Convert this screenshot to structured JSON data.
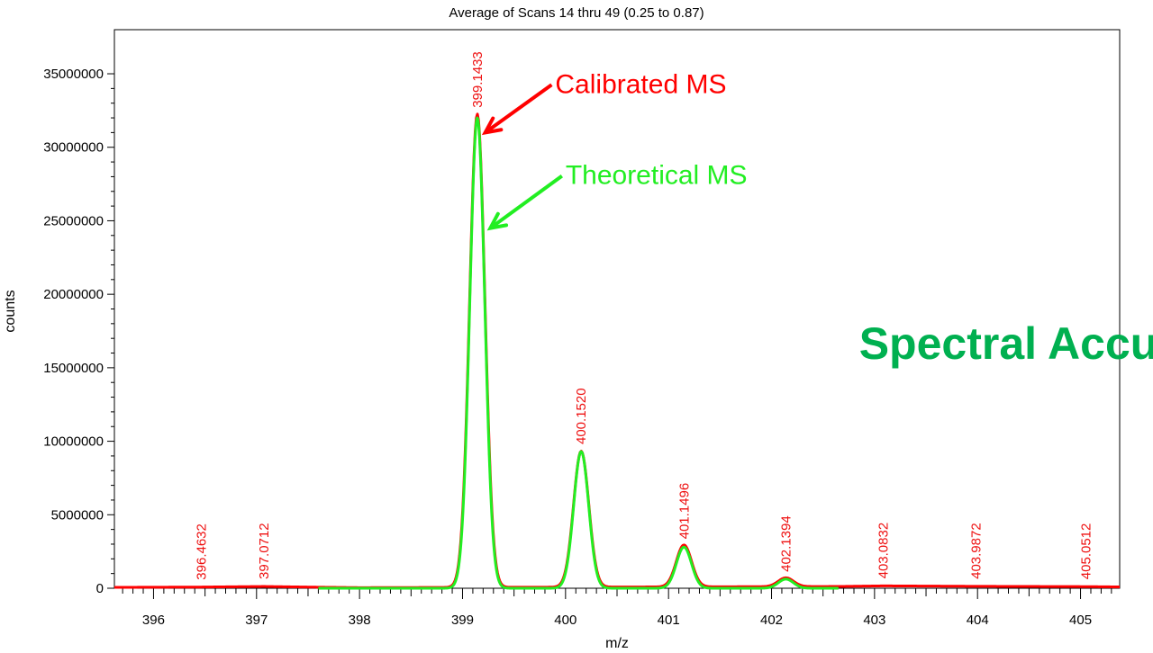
{
  "colors": {
    "calibrated": "#ff0000",
    "theoretical": "#22ee22",
    "peak_label": "#ee1111",
    "accent_text": "#00b050",
    "axis": "#000000"
  },
  "chart_data": {
    "type": "line",
    "title": "Average of Scans 14 thru 49 (0.25 to 0.87)",
    "xlabel": "m/z",
    "ylabel": "counts",
    "xlim": [
      395.62,
      405.38
    ],
    "ylim": [
      0,
      38000000
    ],
    "x_ticks": [
      396,
      397,
      398,
      399,
      400,
      401,
      402,
      403,
      404,
      405
    ],
    "y_ticks": [
      0,
      5000000,
      10000000,
      15000000,
      20000000,
      25000000,
      30000000,
      35000000
    ],
    "grid": false,
    "series": [
      {
        "name": "Calibrated MS",
        "color": "#ff0000",
        "peaks": [
          {
            "mz": 399.1433,
            "height": 32200000,
            "width": 0.175
          },
          {
            "mz": 400.152,
            "height": 9250000,
            "width": 0.175
          },
          {
            "mz": 401.1496,
            "height": 2850000,
            "width": 0.175
          },
          {
            "mz": 402.1394,
            "height": 600000,
            "width": 0.175
          }
        ],
        "baseline_points": [
          {
            "x": 395.62,
            "y": 60000
          },
          {
            "x": 396.4632,
            "y": 80000
          },
          {
            "x": 397.0712,
            "y": 120000
          },
          {
            "x": 397.6,
            "y": 70000
          },
          {
            "x": 398.0,
            "y": 40000
          },
          {
            "x": 402.65,
            "y": 120000
          },
          {
            "x": 403.0832,
            "y": 160000
          },
          {
            "x": 403.9872,
            "y": 130000
          },
          {
            "x": 405.0512,
            "y": 110000
          },
          {
            "x": 405.38,
            "y": 90000
          }
        ]
      },
      {
        "name": "Theoretical MS",
        "color": "#22ee22",
        "x_range": [
          397.6,
          402.65
        ],
        "peaks": [
          {
            "mz": 399.1433,
            "height": 32000000,
            "width": 0.172
          },
          {
            "mz": 400.152,
            "height": 9300000,
            "width": 0.172
          },
          {
            "mz": 401.1496,
            "height": 2800000,
            "width": 0.172
          },
          {
            "mz": 402.1394,
            "height": 620000,
            "width": 0.172
          }
        ]
      }
    ],
    "peak_labels": [
      {
        "text": "396.4632",
        "x": 396.4632,
        "y": 80000
      },
      {
        "text": "397.0712",
        "x": 397.0712,
        "y": 120000
      },
      {
        "text": "399.1433",
        "x": 399.1433,
        "y": 32200000
      },
      {
        "text": "400.1520",
        "x": 400.152,
        "y": 9300000
      },
      {
        "text": "401.1496",
        "x": 401.1496,
        "y": 2850000
      },
      {
        "text": "402.1394",
        "x": 402.1394,
        "y": 620000
      },
      {
        "text": "403.0832",
        "x": 403.0832,
        "y": 160000
      },
      {
        "text": "403.9872",
        "x": 403.9872,
        "y": 130000
      },
      {
        "text": "405.0512",
        "x": 405.0512,
        "y": 110000
      }
    ],
    "annotations": [
      {
        "text": "Calibrated MS",
        "color": "#ff0000",
        "label_x": 399.9,
        "label_y": 33700000,
        "arrow_to_x": 399.22,
        "arrow_to_y": 31000000
      },
      {
        "text": "Theoretical MS",
        "color": "#22ee22",
        "label_x": 400.0,
        "label_y": 27500000,
        "arrow_to_x": 399.27,
        "arrow_to_y": 24500000
      },
      {
        "text": "Spectral Accuracy",
        "color": "#00b050",
        "label_x": 402.85,
        "label_y": 15600000
      }
    ]
  }
}
